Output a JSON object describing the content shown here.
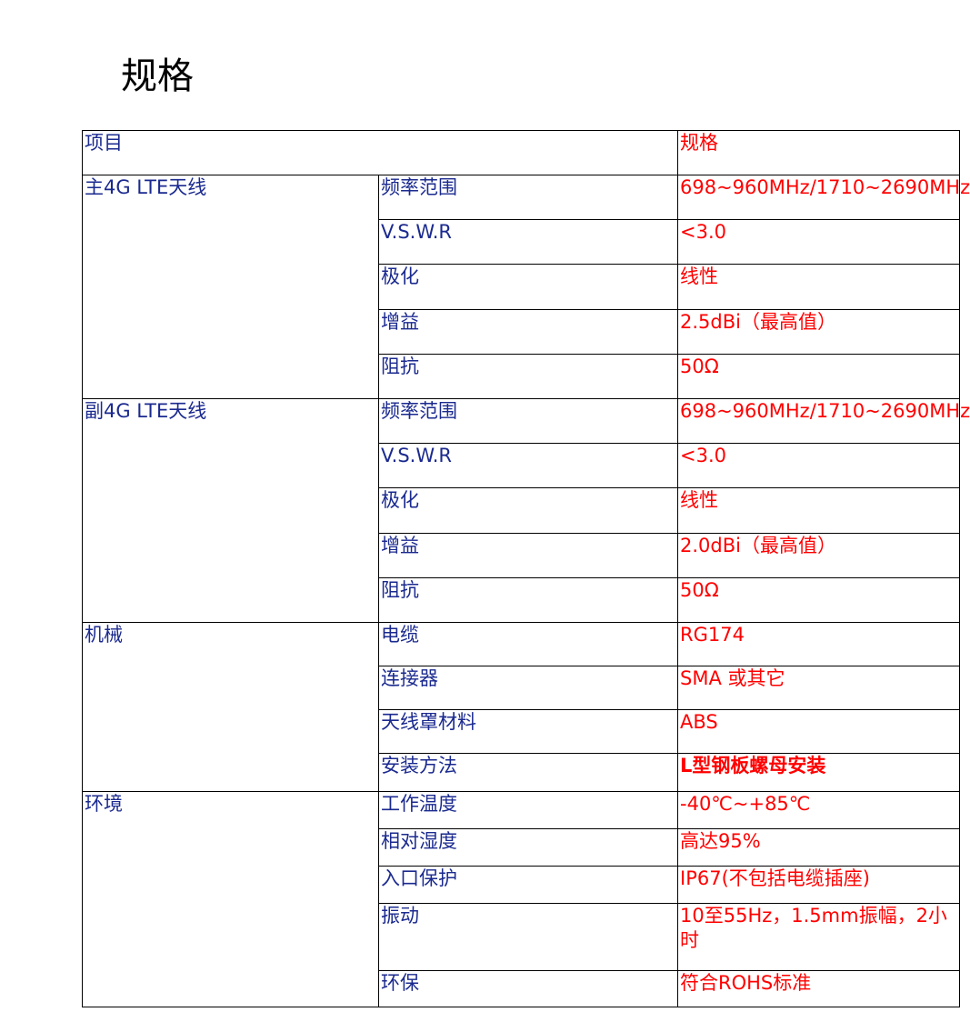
{
  "title": "规格",
  "header": {
    "item": "项目",
    "spec": "规格"
  },
  "sections": [
    {
      "name": "主4G LTE天线",
      "rows": [
        {
          "param": "频率范围",
          "value": "698~960MHz/1710~2690MHz"
        },
        {
          "param": "V.S.W.R",
          "value": "<3.0"
        },
        {
          "param": "极化",
          "value": "线性"
        },
        {
          "param": "增益",
          "value": "2.5dBi（最高值）"
        },
        {
          "param": "阻抗",
          "value": "50Ω"
        }
      ]
    },
    {
      "name": "副4G LTE天线",
      "rows": [
        {
          "param": "频率范围",
          "value": "698~960MHz/1710~2690MHz"
        },
        {
          "param": "V.S.W.R",
          "value": "<3.0"
        },
        {
          "param": "极化",
          "value": "线性"
        },
        {
          "param": "增益",
          "value": "2.0dBi（最高值）"
        },
        {
          "param": "阻抗",
          "value": "50Ω"
        }
      ]
    },
    {
      "name": "机械",
      "rows": [
        {
          "param": "电缆",
          "value": "RG174"
        },
        {
          "param": "连接器",
          "value": "SMA 或其它"
        },
        {
          "param": "天线罩材料",
          "value": "ABS"
        },
        {
          "param": "安装方法",
          "value": "L型钢板螺母安装"
        }
      ]
    },
    {
      "name": "环境",
      "rows": [
        {
          "param": "工作温度",
          "value": "-40℃~+85℃"
        },
        {
          "param": "相对湿度",
          "value": "高达95%"
        },
        {
          "param": "入口保护",
          "value": "IP67(不包括电缆插座)"
        },
        {
          "param": "振动",
          "value": "10至55Hz，1.5mm振幅，2小时"
        },
        {
          "param": "环保",
          "value": "符合ROHS标准"
        }
      ]
    }
  ]
}
